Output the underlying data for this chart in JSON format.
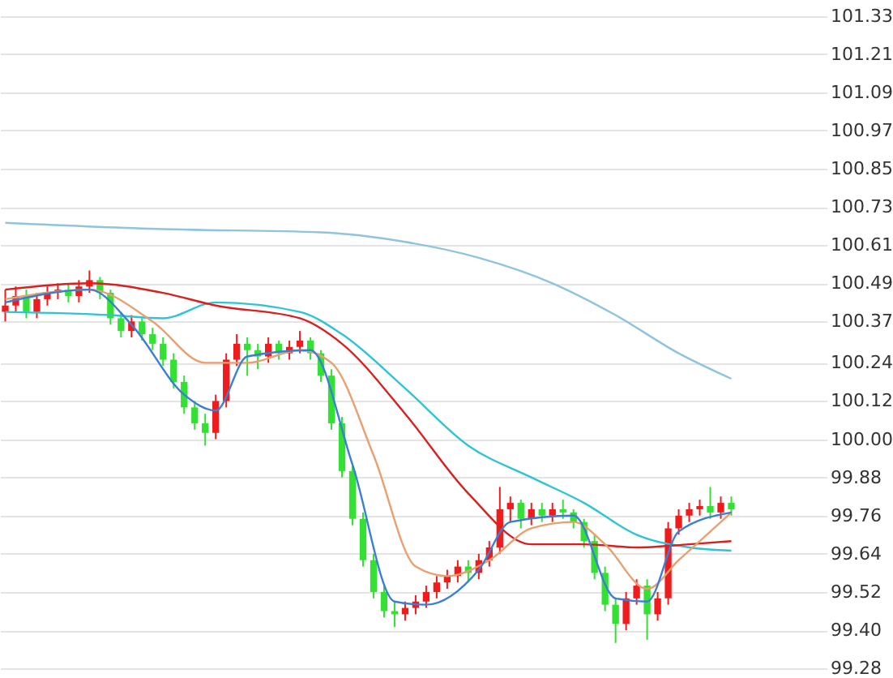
{
  "chart_data": {
    "type": "candlestick",
    "categories": [
      null,
      null,
      null,
      null,
      null,
      null,
      null,
      null,
      null,
      null,
      null,
      null,
      null,
      null,
      null,
      null,
      null,
      null,
      null,
      null,
      null,
      null,
      null,
      null,
      null,
      null,
      null,
      null,
      null,
      null,
      null,
      null,
      null,
      null,
      null,
      null,
      null,
      null,
      null,
      null,
      null,
      null,
      null,
      null,
      null,
      null,
      null,
      null,
      null,
      null,
      null,
      null,
      null,
      null,
      null,
      null,
      null,
      null,
      null,
      null,
      null,
      null,
      null,
      null,
      null,
      null,
      null,
      null,
      null,
      null
    ],
    "ohlc": [
      [
        100.4,
        100.47,
        100.37,
        100.42
      ],
      [
        100.42,
        100.48,
        100.4,
        100.45
      ],
      [
        100.45,
        100.47,
        100.38,
        100.4
      ],
      [
        100.4,
        100.46,
        100.38,
        100.44
      ],
      [
        100.44,
        100.48,
        100.42,
        100.46
      ],
      [
        100.46,
        100.49,
        100.44,
        100.47
      ],
      [
        100.47,
        100.49,
        100.43,
        100.45
      ],
      [
        100.45,
        100.5,
        100.43,
        100.48
      ],
      [
        100.48,
        100.53,
        100.46,
        100.5
      ],
      [
        100.5,
        100.51,
        100.44,
        100.46
      ],
      [
        100.46,
        100.47,
        100.36,
        100.38
      ],
      [
        100.38,
        100.4,
        100.32,
        100.34
      ],
      [
        100.34,
        100.39,
        100.32,
        100.37
      ],
      [
        100.37,
        100.38,
        100.31,
        100.33
      ],
      [
        100.33,
        100.35,
        100.28,
        100.3
      ],
      [
        100.3,
        100.32,
        100.23,
        100.25
      ],
      [
        100.25,
        100.27,
        100.16,
        100.18
      ],
      [
        100.18,
        100.2,
        100.08,
        100.1
      ],
      [
        100.1,
        100.12,
        100.03,
        100.05
      ],
      [
        100.05,
        100.08,
        99.98,
        100.02
      ],
      [
        100.02,
        100.14,
        100.0,
        100.12
      ],
      [
        100.12,
        100.27,
        100.1,
        100.25
      ],
      [
        100.25,
        100.33,
        100.23,
        100.3
      ],
      [
        100.3,
        100.32,
        100.2,
        100.28
      ],
      [
        100.28,
        100.3,
        100.22,
        100.26
      ],
      [
        100.26,
        100.32,
        100.24,
        100.3
      ],
      [
        100.3,
        100.31,
        100.25,
        100.27
      ],
      [
        100.27,
        100.31,
        100.25,
        100.29
      ],
      [
        100.29,
        100.34,
        100.27,
        100.31
      ],
      [
        100.31,
        100.32,
        100.25,
        100.27
      ],
      [
        100.27,
        100.28,
        100.18,
        100.2
      ],
      [
        100.2,
        100.22,
        100.03,
        100.05
      ],
      [
        100.05,
        100.07,
        99.88,
        99.9
      ],
      [
        99.9,
        99.92,
        99.73,
        99.75
      ],
      [
        99.75,
        99.77,
        99.6,
        99.62
      ],
      [
        99.62,
        99.64,
        99.5,
        99.52
      ],
      [
        99.52,
        99.54,
        99.44,
        99.46
      ],
      [
        99.46,
        99.49,
        99.41,
        99.45
      ],
      [
        99.45,
        99.49,
        99.43,
        99.47
      ],
      [
        99.47,
        99.51,
        99.45,
        99.49
      ],
      [
        99.49,
        99.54,
        99.47,
        99.52
      ],
      [
        99.52,
        99.57,
        99.5,
        99.55
      ],
      [
        99.55,
        99.59,
        99.53,
        99.57
      ],
      [
        99.57,
        99.62,
        99.55,
        99.6
      ],
      [
        99.6,
        99.62,
        99.55,
        99.58
      ],
      [
        99.58,
        99.64,
        99.56,
        99.62
      ],
      [
        99.62,
        99.68,
        99.6,
        99.66
      ],
      [
        99.66,
        99.85,
        99.64,
        99.78
      ],
      [
        99.78,
        99.82,
        99.74,
        99.8
      ],
      [
        99.8,
        99.81,
        99.72,
        99.75
      ],
      [
        99.75,
        99.8,
        99.73,
        99.78
      ],
      [
        99.78,
        99.8,
        99.74,
        99.76
      ],
      [
        99.76,
        99.8,
        99.74,
        99.78
      ],
      [
        99.78,
        99.81,
        99.75,
        99.77
      ],
      [
        99.77,
        99.78,
        99.72,
        99.74
      ],
      [
        99.74,
        99.75,
        99.66,
        99.68
      ],
      [
        99.68,
        99.7,
        99.56,
        99.58
      ],
      [
        99.58,
        99.6,
        99.46,
        99.48
      ],
      [
        99.48,
        99.5,
        99.36,
        99.42
      ],
      [
        99.42,
        99.52,
        99.4,
        99.5
      ],
      [
        99.5,
        99.56,
        99.48,
        99.54
      ],
      [
        99.54,
        99.56,
        99.37,
        99.45
      ],
      [
        99.45,
        99.52,
        99.43,
        99.5
      ],
      [
        99.5,
        99.74,
        99.48,
        99.72
      ],
      [
        99.72,
        99.78,
        99.7,
        99.76
      ],
      [
        99.76,
        99.8,
        99.74,
        99.78
      ],
      [
        99.78,
        99.81,
        99.76,
        99.79
      ],
      [
        99.79,
        99.85,
        99.75,
        99.77
      ],
      [
        99.77,
        99.82,
        99.75,
        99.8
      ],
      [
        99.8,
        99.82,
        99.76,
        99.78
      ]
    ],
    "colors": [
      "#ee1c1c",
      "#ee1c1c",
      "#33e033",
      "#ee1c1c",
      "#ee1c1c",
      "#ee1c1c",
      "#33e033",
      "#ee1c1c",
      "#ee1c1c",
      "#33e033",
      "#33e033",
      "#33e033",
      "#ee1c1c",
      "#33e033",
      "#33e033",
      "#33e033",
      "#33e033",
      "#33e033",
      "#33e033",
      "#33e033",
      "#ee1c1c",
      "#ee1c1c",
      "#ee1c1c",
      "#33e033",
      "#33e033",
      "#ee1c1c",
      "#33e033",
      "#ee1c1c",
      "#ee1c1c",
      "#33e033",
      "#33e033",
      "#33e033",
      "#33e033",
      "#33e033",
      "#33e033",
      "#33e033",
      "#33e033",
      "#33e033",
      "#ee1c1c",
      "#ee1c1c",
      "#ee1c1c",
      "#ee1c1c",
      "#ee1c1c",
      "#ee1c1c",
      "#33e033",
      "#ee1c1c",
      "#ee1c1c",
      "#ee1c1c",
      "#ee1c1c",
      "#33e033",
      "#ee1c1c",
      "#33e033",
      "#ee1c1c",
      "#33e033",
      "#33e033",
      "#33e033",
      "#33e033",
      "#33e033",
      "#33e033",
      "#ee1c1c",
      "#ee1c1c",
      "#33e033",
      "#ee1c1c",
      "#ee1c1c",
      "#ee1c1c",
      "#ee1c1c",
      "#ee1c1c",
      "#33e033",
      "#ee1c1c",
      "#33e033"
    ],
    "series": [
      {
        "type": "line",
        "color": "#8fc3de",
        "values": [
          100.68,
          null,
          null,
          null,
          null,
          null,
          null,
          null,
          null,
          null,
          null,
          null,
          null,
          null,
          null,
          100.66,
          null,
          null,
          null,
          null,
          null,
          null,
          null,
          null,
          null,
          null,
          null,
          null,
          null,
          null,
          100.65,
          null,
          null,
          null,
          null,
          null,
          null,
          null,
          100.62,
          null,
          null,
          null,
          null,
          null,
          null,
          100.57,
          null,
          null,
          null,
          null,
          null,
          null,
          100.49,
          null,
          null,
          null,
          null,
          null,
          100.39,
          null,
          null,
          null,
          null,
          null,
          100.27,
          null,
          null,
          null,
          null,
          100.19
        ]
      },
      {
        "type": "line",
        "color": "#2ec4d6",
        "values": [
          100.4,
          null,
          null,
          null,
          null,
          null,
          null,
          null,
          null,
          null,
          100.39,
          null,
          null,
          null,
          null,
          100.38,
          null,
          null,
          null,
          null,
          100.43,
          null,
          null,
          null,
          null,
          null,
          null,
          null,
          100.4,
          null,
          null,
          null,
          100.33,
          null,
          null,
          null,
          null,
          null,
          100.16,
          null,
          null,
          null,
          null,
          null,
          99.98,
          null,
          null,
          null,
          null,
          null,
          99.88,
          null,
          null,
          null,
          null,
          99.8,
          null,
          null,
          null,
          null,
          99.7,
          null,
          null,
          null,
          null,
          99.66,
          null,
          null,
          null,
          99.65
        ]
      },
      {
        "type": "line",
        "color": "#d92020",
        "values": [
          100.47,
          null,
          null,
          null,
          null,
          null,
          null,
          null,
          100.49,
          null,
          null,
          null,
          null,
          null,
          null,
          100.46,
          null,
          null,
          null,
          null,
          100.42,
          null,
          null,
          null,
          null,
          null,
          null,
          null,
          100.38,
          null,
          null,
          null,
          100.3,
          null,
          null,
          null,
          null,
          null,
          100.08,
          null,
          null,
          null,
          null,
          null,
          99.83,
          null,
          null,
          null,
          null,
          null,
          99.67,
          null,
          null,
          null,
          null,
          99.67,
          null,
          null,
          null,
          null,
          99.66,
          null,
          null,
          null,
          null,
          99.67,
          null,
          null,
          null,
          99.68
        ]
      },
      {
        "type": "line",
        "color": "#e8a070",
        "values": [
          100.44,
          null,
          null,
          null,
          null,
          null,
          null,
          null,
          100.47,
          null,
          null,
          null,
          null,
          null,
          100.37,
          null,
          null,
          null,
          null,
          100.24,
          null,
          null,
          null,
          100.24,
          null,
          null,
          null,
          null,
          100.28,
          null,
          null,
          100.24,
          null,
          null,
          null,
          99.95,
          null,
          null,
          null,
          99.6,
          null,
          null,
          99.57,
          null,
          null,
          null,
          99.62,
          null,
          null,
          null,
          99.72,
          null,
          null,
          null,
          99.74,
          null,
          null,
          99.67,
          null,
          null,
          null,
          99.53,
          null,
          null,
          99.62,
          null,
          null,
          null,
          null,
          99.77
        ]
      },
      {
        "type": "line",
        "color": "#3a7fd5",
        "values": [
          100.43,
          null,
          null,
          null,
          null,
          null,
          null,
          null,
          100.47,
          null,
          null,
          null,
          100.36,
          null,
          null,
          null,
          null,
          100.14,
          null,
          null,
          100.09,
          null,
          null,
          100.26,
          null,
          null,
          null,
          null,
          null,
          100.28,
          null,
          null,
          null,
          99.92,
          null,
          null,
          null,
          99.49,
          null,
          null,
          99.48,
          null,
          null,
          null,
          null,
          99.59,
          null,
          null,
          99.74,
          null,
          null,
          null,
          null,
          null,
          99.76,
          null,
          null,
          null,
          99.5,
          null,
          null,
          99.49,
          null,
          null,
          99.71,
          null,
          null,
          null,
          null,
          99.77
        ]
      }
    ],
    "ylim": [
      99.26,
      101.38
    ],
    "yticks": [
      101.33,
      101.21,
      101.09,
      100.97,
      100.85,
      100.73,
      100.61,
      100.49,
      100.37,
      100.24,
      100.12,
      {
        "value": 100,
        "label": "100.00"
      },
      99.88,
      99.76,
      99.64,
      99.52,
      {
        "value": 99.4,
        "label": "99.40"
      },
      99.28
    ],
    "grid": "y",
    "tick_labels": "y"
  }
}
